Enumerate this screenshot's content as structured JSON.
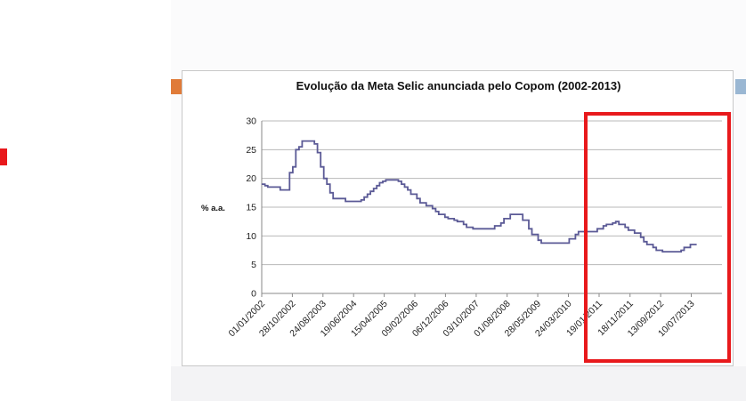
{
  "colors": {
    "series_line": "#5b5a96",
    "gridline": "#b8b8b8",
    "highlight": "#e8191c",
    "orange_tab": "#e07b39",
    "blue_tab": "#9ab7d3",
    "red_marker": "#e8191c"
  },
  "chart_data": {
    "type": "line",
    "title": "Evolução da Meta Selic anunciada pelo Copom (2002-2013)",
    "ylabel": "% a.a.",
    "xlabel": "",
    "ylim": [
      0,
      30
    ],
    "yticks": [
      0,
      5,
      10,
      15,
      20,
      25,
      30
    ],
    "grid": true,
    "legend": "none",
    "x_tick_labels": [
      "01/01/2002",
      "28/10/2002",
      "24/08/2003",
      "19/06/2004",
      "15/04/2005",
      "09/02/2006",
      "06/12/2006",
      "03/10/2007",
      "01/08/2008",
      "28/05/2009",
      "24/03/2010",
      "19/01/2011",
      "18/11/2011",
      "13/09/2012",
      "10/07/2013"
    ],
    "series": [
      {
        "step": true,
        "points": [
          [
            "01/01/2002",
            19.0
          ],
          [
            "01/02/2002",
            18.75
          ],
          [
            "01/03/2002",
            18.5
          ],
          [
            "01/07/2002",
            18.0
          ],
          [
            "01/10/2002",
            21.0
          ],
          [
            "01/11/2002",
            22.0
          ],
          [
            "01/12/2002",
            25.0
          ],
          [
            "01/01/2003",
            25.5
          ],
          [
            "01/02/2003",
            26.5
          ],
          [
            "01/06/2003",
            26.0
          ],
          [
            "01/07/2003",
            24.5
          ],
          [
            "01/08/2003",
            22.0
          ],
          [
            "01/09/2003",
            20.0
          ],
          [
            "01/10/2003",
            19.0
          ],
          [
            "01/11/2003",
            17.5
          ],
          [
            "01/12/2003",
            16.5
          ],
          [
            "01/04/2004",
            16.0
          ],
          [
            "01/09/2004",
            16.25
          ],
          [
            "01/10/2004",
            16.75
          ],
          [
            "01/11/2004",
            17.25
          ],
          [
            "01/12/2004",
            17.75
          ],
          [
            "01/01/2005",
            18.25
          ],
          [
            "01/02/2005",
            18.75
          ],
          [
            "01/03/2005",
            19.25
          ],
          [
            "01/04/2005",
            19.5
          ],
          [
            "01/05/2005",
            19.75
          ],
          [
            "01/09/2005",
            19.5
          ],
          [
            "01/10/2005",
            19.0
          ],
          [
            "01/11/2005",
            18.5
          ],
          [
            "01/12/2005",
            18.0
          ],
          [
            "01/01/2006",
            17.25
          ],
          [
            "01/03/2006",
            16.5
          ],
          [
            "01/04/2006",
            15.75
          ],
          [
            "01/06/2006",
            15.25
          ],
          [
            "01/08/2006",
            14.75
          ],
          [
            "01/09/2006",
            14.25
          ],
          [
            "01/10/2006",
            13.75
          ],
          [
            "01/12/2006",
            13.25
          ],
          [
            "01/01/2007",
            13.0
          ],
          [
            "01/03/2007",
            12.75
          ],
          [
            "01/04/2007",
            12.5
          ],
          [
            "01/06/2007",
            12.0
          ],
          [
            "01/07/2007",
            11.5
          ],
          [
            "01/09/2007",
            11.25
          ],
          [
            "01/04/2008",
            11.75
          ],
          [
            "01/06/2008",
            12.25
          ],
          [
            "01/07/2008",
            13.0
          ],
          [
            "01/09/2008",
            13.75
          ],
          [
            "01/01/2009",
            12.75
          ],
          [
            "01/03/2009",
            11.25
          ],
          [
            "01/04/2009",
            10.25
          ],
          [
            "01/06/2009",
            9.25
          ],
          [
            "01/07/2009",
            8.75
          ],
          [
            "01/04/2010",
            9.5
          ],
          [
            "01/06/2010",
            10.25
          ],
          [
            "01/07/2010",
            10.75
          ],
          [
            "01/01/2011",
            11.25
          ],
          [
            "01/03/2011",
            11.75
          ],
          [
            "01/04/2011",
            12.0
          ],
          [
            "01/06/2011",
            12.25
          ],
          [
            "01/07/2011",
            12.5
          ],
          [
            "01/08/2011",
            12.0
          ],
          [
            "01/10/2011",
            11.5
          ],
          [
            "01/11/2011",
            11.0
          ],
          [
            "01/01/2012",
            10.5
          ],
          [
            "01/03/2012",
            9.75
          ],
          [
            "01/04/2012",
            9.0
          ],
          [
            "01/05/2012",
            8.5
          ],
          [
            "01/07/2012",
            8.0
          ],
          [
            "01/08/2012",
            7.5
          ],
          [
            "01/10/2012",
            7.25
          ],
          [
            "01/04/2013",
            7.5
          ],
          [
            "01/05/2013",
            8.0
          ],
          [
            "01/07/2013",
            8.5
          ],
          [
            "01/09/2013",
            8.5
          ]
        ]
      }
    ]
  }
}
